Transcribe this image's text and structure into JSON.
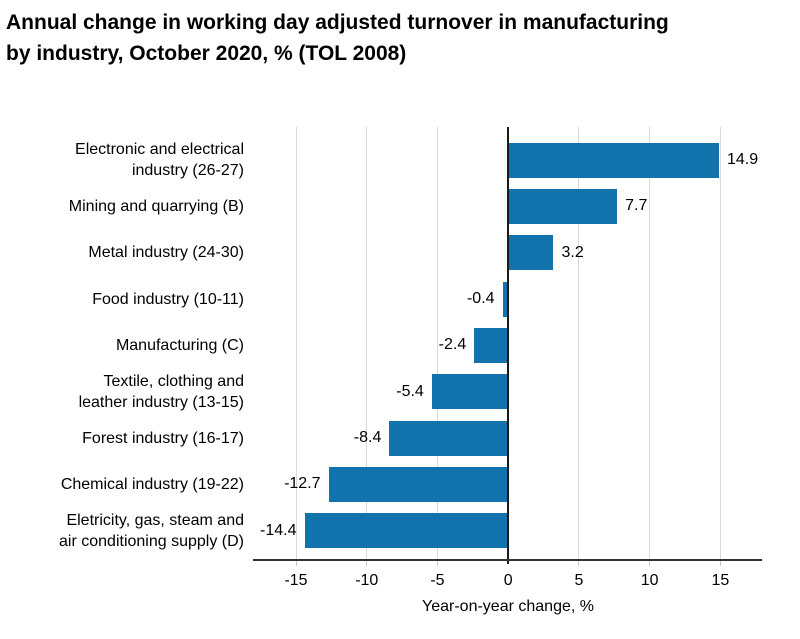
{
  "title": {
    "line1": "Annual change in working day adjusted turnover in manufacturing",
    "line2": "by industry, October 2020, % (TOL 2008)"
  },
  "chart_data": {
    "type": "bar",
    "orientation": "horizontal",
    "title": "Annual change in working day adjusted turnover in manufacturing by industry, October 2020, % (TOL 2008)",
    "categories": [
      "Electronic and electrical\nindustry (26-27)",
      "Mining and quarrying (B)",
      "Metal industry (24-30)",
      "Food industry (10-11)",
      "Manufacturing (C)",
      "Textile, clothing and\nleather industry (13-15)",
      "Forest industry (16-17)",
      "Chemical industry (19-22)",
      "Eletricity, gas, steam and\nair conditioning supply (D)"
    ],
    "values": [
      14.9,
      7.7,
      3.2,
      -0.4,
      -2.4,
      -5.4,
      -8.4,
      -12.7,
      -14.4
    ],
    "xlabel": "Year-on-year change, %",
    "x_ticks": [
      -15,
      -10,
      -5,
      0,
      5,
      10,
      15
    ],
    "xlim": [
      -17.9,
      17.8
    ],
    "grid": true,
    "legend": false,
    "colors": {
      "bar": "#1272ac",
      "gridline": "#d9d9d9",
      "zero_line": "#1a1a1a",
      "axis_line": "#333333",
      "tick": "#c8c8c8",
      "text": "#000000"
    }
  }
}
